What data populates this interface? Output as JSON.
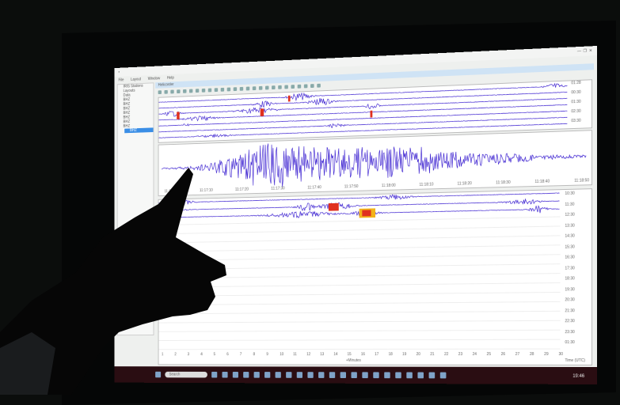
{
  "window": {
    "menu": [
      "File",
      "Layout",
      "Window",
      "Help"
    ],
    "tab_label": "Helicorder",
    "controls": [
      "minimize",
      "maximize",
      "close"
    ]
  },
  "sidebar": {
    "items": [
      {
        "label": "IRIS Stations"
      },
      {
        "label": "Layouts"
      },
      {
        "label": "Data"
      },
      {
        "label": "BHZ"
      },
      {
        "label": "BHZ"
      },
      {
        "label": "BHZ"
      },
      {
        "label": "BHZ"
      },
      {
        "label": "BHZ"
      },
      {
        "label": "BHZ"
      },
      {
        "label": "BHZ"
      },
      {
        "label": "BHZ",
        "selected": true
      }
    ]
  },
  "top_panel": {
    "right_labels": [
      "01:28",
      "00:30",
      "01:30",
      "02:30",
      "03:30"
    ]
  },
  "middle_panel": {
    "time_ticks": [
      "11:17:00",
      "11:17:10",
      "11:17:20",
      "11:17:30",
      "11:17:40",
      "11:17:50",
      "11:18:00",
      "11:18:10",
      "11:18:20",
      "11:18:30",
      "11:18:40",
      "11:18:50"
    ]
  },
  "bottom_panel": {
    "right_labels": [
      "10:30",
      "11:30",
      "12:30",
      "13:30",
      "14:30",
      "15:30",
      "16:30",
      "17:30",
      "18:30",
      "19:30",
      "20:30",
      "21:30",
      "22:30",
      "23:30",
      "01:30"
    ],
    "x_ticks": [
      "1",
      "2",
      "3",
      "4",
      "5",
      "6",
      "7",
      "8",
      "9",
      "10",
      "11",
      "12",
      "13",
      "14",
      "15",
      "16",
      "17",
      "18",
      "19",
      "20",
      "21",
      "22",
      "23",
      "24",
      "25",
      "26",
      "27",
      "28",
      "29",
      "30"
    ],
    "x_label": "+Minutes",
    "y_label": "Time (UTC)"
  },
  "taskbar": {
    "search_placeholder": "Search",
    "clock": "19:46"
  },
  "colors": {
    "trace": "#3a1fd0",
    "event": "#e0301e",
    "highlight": "#f2b21a",
    "taskbar": "#2a0d12"
  }
}
